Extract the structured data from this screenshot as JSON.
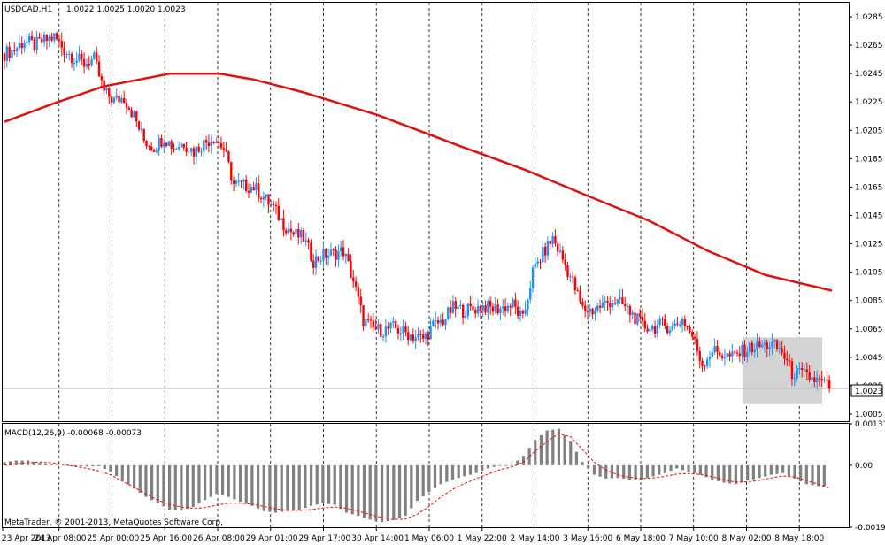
{
  "window": {
    "symbol_label": "USDCAD,H1",
    "ohlc_readout": "1.0022 1.0025 1.0020 1.0023",
    "macd_label": "MACD(12,26,9) -0.00068 -0.00073",
    "copyright": "MetaTrader, © 2001-2013, MetaQuotes Software Corp."
  },
  "colors": {
    "background": "#ffffff",
    "bull_candle": "#1e90ff",
    "bear_candle": "#ff0000",
    "moving_average": "#e01010",
    "macd_histogram": "#808080",
    "macd_signal": "#ff0000",
    "vertical_grid": "#000000",
    "current_price_line": "#c0c0c0",
    "selection_box": "#d3d3d3"
  },
  "icons": {
    "current_price_tag": "price-tag",
    "selection_rectangle": "selection-rectangle"
  },
  "chart_data": [
    {
      "type": "candlestick",
      "title": "",
      "xlabel": "",
      "ylabel": "",
      "ylim": [
        1.0,
        1.0295
      ],
      "y_ticks": [
        "1.0285",
        "1.0265",
        "1.0245",
        "1.0225",
        "1.0205",
        "1.0185",
        "1.0165",
        "1.0145",
        "1.0125",
        "1.0105",
        "1.0085",
        "1.0065",
        "1.0045",
        "1.0025",
        "1.0005"
      ],
      "x_ticks": [
        "23 Apr 2013",
        "24 Apr 08:00",
        "25 Apr 00:00",
        "25 Apr 16:00",
        "26 Apr 08:00",
        "29 Apr 01:00",
        "29 Apr 17:00",
        "30 Apr 14:00",
        "1 May 06:00",
        "1 May 22:00",
        "2 May 14:00",
        "3 May 16:00",
        "6 May 18:00",
        "7 May 10:00",
        "8 May 02:00",
        "8 May 18:00"
      ],
      "grid": "vertical-dashed",
      "current_price": "1.0023",
      "price_series_close": [
        1.0259,
        1.0262,
        1.0268,
        1.0265,
        1.0268,
        1.0271,
        1.0262,
        1.0256,
        1.0252,
        1.0255,
        1.0232,
        1.0226,
        1.0228,
        1.0215,
        1.0198,
        1.0193,
        1.02,
        1.0193,
        1.0196,
        1.019,
        1.0196,
        1.02,
        1.0192,
        1.0167,
        1.0166,
        1.0165,
        1.0158,
        1.015,
        1.0139,
        1.0132,
        1.0129,
        1.0113,
        1.0117,
        1.0118,
        1.012,
        1.0099,
        1.0071,
        1.0065,
        1.0064,
        1.0066,
        1.0063,
        1.006,
        1.0058,
        1.0067,
        1.0071,
        1.008,
        1.0078,
        1.0079,
        1.0081,
        1.0079,
        1.008,
        1.0082,
        1.0071,
        1.0105,
        1.0118,
        1.0129,
        1.0114,
        1.0098,
        1.0079,
        1.0078,
        1.0082,
        1.0085,
        1.0082,
        1.0075,
        1.0067,
        1.0066,
        1.0068,
        1.0066,
        1.0072,
        1.006,
        1.004,
        1.005,
        1.0047,
        1.0045,
        1.0049,
        1.0052,
        1.0053,
        1.0054,
        1.0049,
        1.0034,
        1.0033,
        1.003,
        1.0027,
        1.0023
      ],
      "moving_average": [
        [
          1.0211,
          0
        ],
        [
          1.0224,
          0.06
        ],
        [
          1.0236,
          0.12
        ],
        [
          1.0245,
          0.2
        ],
        [
          1.0245,
          0.26
        ],
        [
          1.0241,
          0.3
        ],
        [
          1.0232,
          0.36
        ],
        [
          1.0216,
          0.45
        ],
        [
          1.0194,
          0.55
        ],
        [
          1.0177,
          0.63
        ],
        [
          1.016,
          0.7
        ],
        [
          1.0141,
          0.78
        ],
        [
          1.012,
          0.85
        ],
        [
          1.0103,
          0.92
        ],
        [
          1.0092,
          1
        ]
      ]
    },
    {
      "type": "macd",
      "title": "",
      "ylim": [
        -0.00196,
        0.00131
      ],
      "y_ticks": [
        "0.00131",
        "0.00",
        "-0.00196"
      ],
      "series": [
        {
          "kind": "histogram",
          "values": [
            0.0001,
            0.00015,
            0.00015,
            8e-05,
            2e-05,
            1e-05,
            -4e-05,
            -4e-05,
            -3e-05,
            -0.0002,
            -0.00048,
            -0.00074,
            -0.001,
            -0.0012,
            -0.0014,
            -0.00142,
            -0.00132,
            -0.0011,
            -0.0009,
            -0.001,
            -0.00115,
            -0.00128,
            -0.00145,
            -0.0015,
            -0.00145,
            -0.00142,
            -0.00128,
            -0.0012,
            -0.00125,
            -0.0015,
            -0.0016,
            -0.00172,
            -0.0018,
            -0.00173,
            -0.0016,
            -0.00112,
            -0.00085,
            -0.0006,
            -0.00045,
            -0.00035,
            -0.00025,
            -0.0001,
            0.0,
            0.0,
            0.0003,
            0.0008,
            0.0011,
            0.00115,
            0.00075,
            0.0001,
            -0.0003,
            -0.00042,
            -0.0004,
            -0.00045,
            -0.00045,
            -0.00035,
            -0.00025,
            -0.0001,
            -0.0002,
            -0.0003,
            -0.00045,
            -0.00055,
            -0.0006,
            -0.00048,
            -0.0004,
            -0.0003,
            -0.00025,
            -0.00042,
            -0.0006,
            -0.00066,
            -0.00068
          ]
        },
        {
          "kind": "signal",
          "values": [
            0.0,
            4e-05,
            8e-05,
            0.0001,
            8e-05,
            3e-05,
            -4e-05,
            -0.0001,
            -0.00018,
            -0.0003,
            -0.0005,
            -0.0007,
            -0.0009,
            -0.0011,
            -0.00124,
            -0.00132,
            -0.00136,
            -0.00134,
            -0.00126,
            -0.0012,
            -0.0012,
            -0.00123,
            -0.0013,
            -0.00138,
            -0.00142,
            -0.00143,
            -0.0014,
            -0.00135,
            -0.00132,
            -0.00136,
            -0.00145,
            -0.00156,
            -0.00165,
            -0.00172,
            -0.0017,
            -0.00155,
            -0.0013,
            -0.001,
            -0.00076,
            -0.00058,
            -0.00042,
            -0.00028,
            -0.00014,
            -6e-05,
            0.0001,
            0.00045,
            0.00075,
            0.001,
            0.0009,
            0.0005,
            0.0001,
            -0.00015,
            -0.0003,
            -0.00038,
            -0.00042,
            -0.0004,
            -0.00035,
            -0.00028,
            -0.00026,
            -0.00029,
            -0.00036,
            -0.00046,
            -0.00053,
            -0.00052,
            -0.00048,
            -0.0004,
            -0.00034,
            -0.00037,
            -0.00048,
            -0.0006,
            -0.00073
          ]
        }
      ]
    }
  ]
}
